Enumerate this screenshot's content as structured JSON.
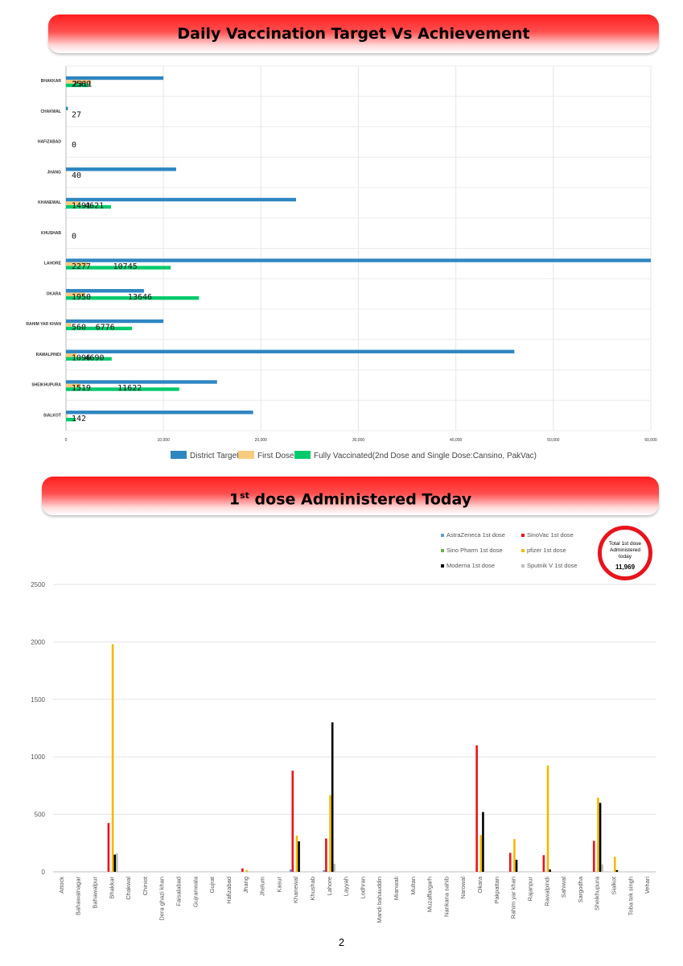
{
  "banner1": {
    "title": "Daily Vaccination Target Vs Achievement"
  },
  "banner2": {
    "title_pre": "1",
    "title_sup": "st",
    "title_post": " dose Administered Today"
  },
  "total_box": {
    "label": "Total 1st dose Administered today",
    "value": "11,969"
  },
  "page_number": "2",
  "colors": {
    "district_target": "#2e86c1",
    "first_dose": "#f8cb7f",
    "fully_vaccinated": "#00c96b",
    "astrazeneca": "#5b9bd5",
    "sinovac": "#e8141c",
    "sinopharm": "#70ad47",
    "pfizer": "#f5b800",
    "moderna": "#000000",
    "sputnik": "#bfbfbf"
  },
  "chart_data": [
    {
      "type": "bar",
      "orientation": "horizontal",
      "categories": [
        "BHAKKAR",
        "CHAKWAL",
        "HAFIZABAD",
        "JHANG",
        "KHANEWAL",
        "KHUSHAB",
        "LAHORE",
        "OKARA",
        "RAHIM YAR KHAN",
        "RAWALPINDI",
        "SHEIKHUPURA",
        "SIALKOT"
      ],
      "series": [
        {
          "name": "District Target",
          "values": [
            10000,
            200,
            0,
            11300,
            23600,
            0,
            60000,
            8000,
            10000,
            46000,
            15500,
            19200
          ]
        },
        {
          "name": "First Dose",
          "values": [
            2569,
            27,
            0,
            40,
            1491,
            0,
            2277,
            1950,
            560,
            1096,
            1519,
            142
          ]
        },
        {
          "name": "Fully Vaccinated(2nd Dose and Single Dose:Cansino, PakVac)",
          "values": [
            2311,
            0,
            0,
            0,
            4621,
            0,
            10745,
            13646,
            6776,
            4690,
            11622,
            1000
          ]
        }
      ],
      "value_labels": {
        "first_dose": [
          "2569",
          "27",
          "0",
          "40",
          "1491",
          "0",
          "2277",
          "1950",
          "560",
          "1096",
          "1519",
          "142"
        ],
        "fully_vaccinated": [
          "2311",
          "",
          "",
          "",
          "4621",
          "",
          "10745",
          "13646",
          "6776",
          "4690",
          "11622",
          ""
        ]
      },
      "x_ticks": [
        "0",
        "10,000",
        "20,000",
        "30,000",
        "40,000",
        "50,000",
        "60,000"
      ],
      "xlim": [
        0,
        60000
      ],
      "legend_position": "bottom",
      "grid": true
    },
    {
      "type": "bar",
      "orientation": "vertical",
      "categories": [
        "Attock",
        "Bahawalnagar",
        "Bahawalpur",
        "Bhakkar",
        "Chakwal",
        "Chiniot",
        "Dera ghazi khan",
        "Faisalabad",
        "Gujranwala",
        "Gujrat",
        "Hafizabad",
        "Jhang",
        "Jhelum",
        "Kasur",
        "Khanewal",
        "Khushab",
        "Lahore",
        "Layyah",
        "Lodhran",
        "Mandi bahauddin",
        "Mianwali",
        "Multan",
        "Muzaffargarh",
        "Nankana sahib",
        "Narowal",
        "Okara",
        "Pakpattan",
        "Rahim yar khan",
        "Rajanpur",
        "Rawalpindi",
        "Sahiwal",
        "Sargodha",
        "Sheikhupura",
        "Sialkot",
        "Toba tek singh",
        "Vehari"
      ],
      "series": [
        {
          "name": "AstraZeneca 1st dose",
          "values": [
            0,
            0,
            0,
            0,
            0,
            0,
            0,
            0,
            0,
            0,
            0,
            0,
            0,
            0,
            20,
            0,
            15,
            0,
            0,
            0,
            0,
            0,
            0,
            0,
            0,
            0,
            0,
            0,
            0,
            0,
            0,
            0,
            0,
            0,
            0,
            0
          ]
        },
        {
          "name": "SinoVac 1st dose",
          "values": [
            0,
            0,
            0,
            425,
            0,
            0,
            0,
            0,
            0,
            0,
            0,
            30,
            0,
            0,
            880,
            0,
            290,
            0,
            0,
            0,
            0,
            0,
            0,
            0,
            0,
            1100,
            0,
            165,
            0,
            145,
            0,
            0,
            270,
            0,
            0,
            0
          ]
        },
        {
          "name": "Sino Pharm 1st dose",
          "values": [
            0,
            0,
            0,
            0,
            0,
            0,
            0,
            0,
            0,
            0,
            0,
            0,
            0,
            0,
            0,
            0,
            0,
            0,
            0,
            0,
            0,
            0,
            0,
            0,
            0,
            0,
            0,
            0,
            0,
            0,
            0,
            0,
            0,
            0,
            0,
            0
          ]
        },
        {
          "name": "pfizer 1st dose",
          "values": [
            0,
            0,
            0,
            1980,
            0,
            0,
            0,
            0,
            0,
            0,
            0,
            15,
            0,
            0,
            315,
            0,
            665,
            0,
            0,
            0,
            0,
            0,
            0,
            0,
            0,
            320,
            0,
            285,
            0,
            925,
            0,
            0,
            645,
            130,
            0,
            0
          ]
        },
        {
          "name": "Moderna 1st dose",
          "values": [
            0,
            0,
            0,
            150,
            0,
            0,
            0,
            0,
            0,
            0,
            0,
            0,
            0,
            0,
            265,
            0,
            1300,
            0,
            0,
            0,
            0,
            0,
            0,
            0,
            0,
            520,
            0,
            105,
            0,
            20,
            0,
            0,
            600,
            15,
            0,
            0
          ]
        },
        {
          "name": "Sputnik V 1st dose",
          "values": [
            0,
            0,
            0,
            160,
            0,
            0,
            0,
            0,
            0,
            0,
            0,
            0,
            0,
            0,
            0,
            0,
            70,
            0,
            0,
            0,
            0,
            0,
            0,
            0,
            0,
            0,
            0,
            0,
            0,
            0,
            0,
            0,
            65,
            0,
            0,
            0
          ]
        }
      ],
      "y_ticks": [
        "0",
        "500",
        "1000",
        "1500",
        "2000",
        "2500"
      ],
      "ylim": [
        0,
        2500
      ],
      "legend_position": "top-right",
      "grid": true
    }
  ]
}
